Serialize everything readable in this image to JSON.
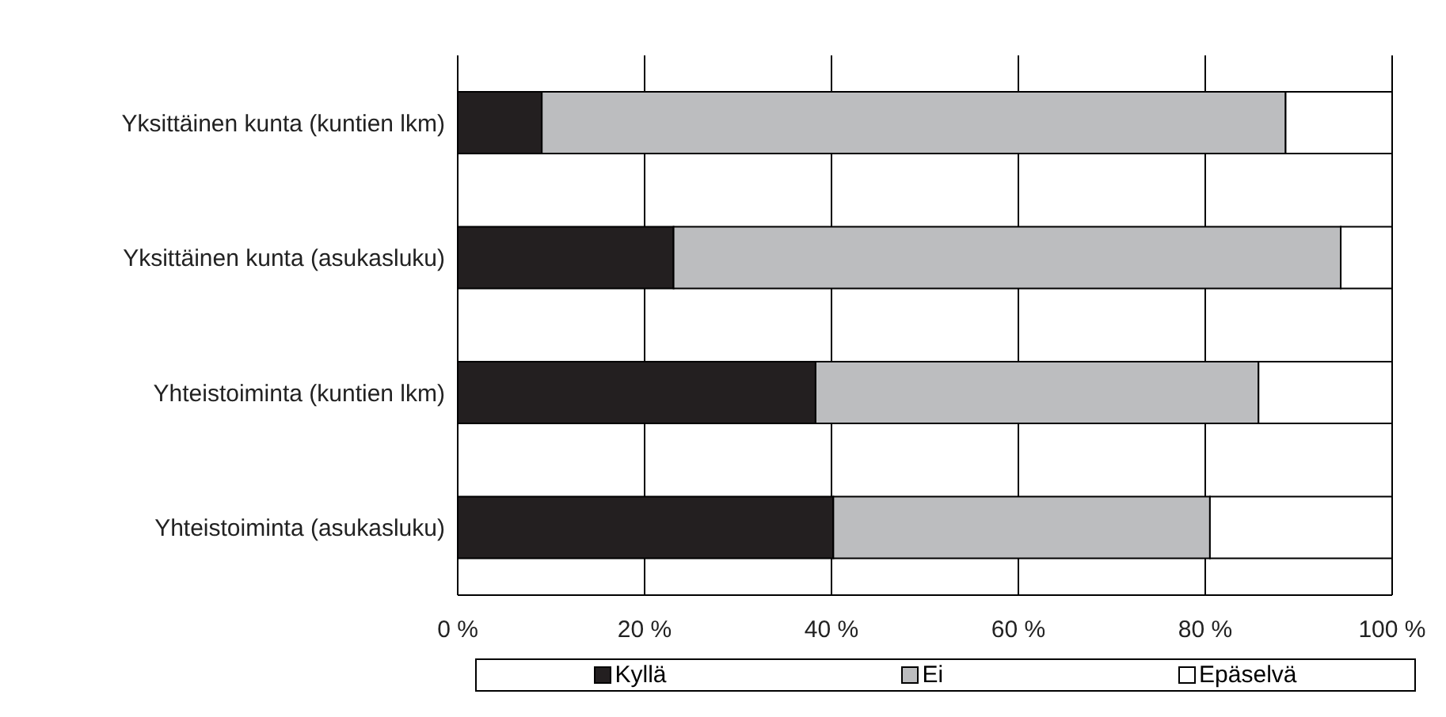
{
  "chart_data": {
    "type": "bar",
    "orientation": "horizontal",
    "stacked": true,
    "categories": [
      "Yksittäinen kunta (kuntien lkm)",
      "Yksittäinen kunta (asukasluku)",
      "Yhteistoiminta (kuntien lkm)",
      "Yhteistoiminta (asukasluku)"
    ],
    "series": [
      {
        "name": "Kyllä",
        "color": "#231f20",
        "values": [
          9.0,
          23.1,
          38.3,
          40.2
        ]
      },
      {
        "name": "Ei",
        "color": "#bcbdbf",
        "values": [
          79.6,
          71.4,
          47.4,
          40.3
        ]
      },
      {
        "name": "Epäselvä",
        "color": "#ffffff",
        "values": [
          11.4,
          5.5,
          14.3,
          19.5
        ]
      }
    ],
    "xlim": [
      0,
      100
    ],
    "xticks": [
      {
        "value": 0,
        "label": "0 %"
      },
      {
        "value": 20,
        "label": "20 %"
      },
      {
        "value": 40,
        "label": "40 %"
      },
      {
        "value": 60,
        "label": "60 %"
      },
      {
        "value": 80,
        "label": "80 %"
      },
      {
        "value": 100,
        "label": "100 %"
      }
    ],
    "grid": "x",
    "legend": "bottom"
  }
}
